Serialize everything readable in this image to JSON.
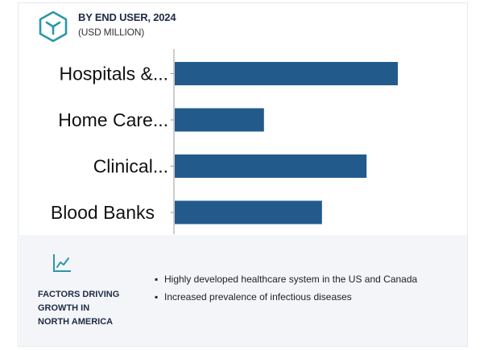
{
  "header": {
    "title": "BY END USER, 2024",
    "subtitle": "(USD MILLION)",
    "icon": "cube-icon"
  },
  "chart_data": {
    "type": "bar",
    "orientation": "horizontal",
    "categories": [
      "Hospitals &...",
      "Home Care...",
      "Clinical...",
      "Blood Banks"
    ],
    "values": [
      100,
      40,
      86,
      66
    ],
    "bar_color": "#235a8c",
    "xlim": [
      0,
      100
    ],
    "title": "BY END USER, 2024",
    "subtitle": "(USD MILLION)",
    "grid": false
  },
  "footer": {
    "icon": "trend-chart-icon",
    "label": "FACTORS DRIVING\nGROWTH IN\nNORTH AMERICA",
    "bullets": [
      "Highly developed healthcare system in the US and Canada",
      "Increased prevalence of infectious diseases"
    ]
  },
  "colors": {
    "accent": "#2b97a8",
    "bar": "#235a8c",
    "footer_bg": "#f3f5f8"
  }
}
